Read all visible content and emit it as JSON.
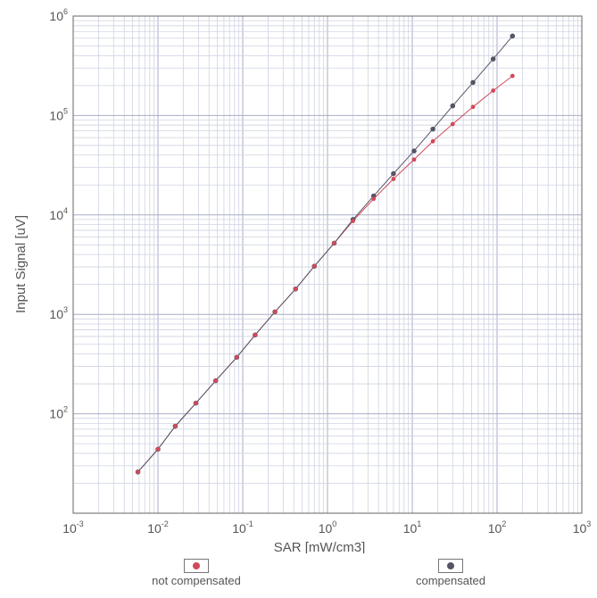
{
  "chart_data": {
    "type": "scatter",
    "title": "",
    "xlabel": "SAR [mW/cm3]",
    "ylabel": "Input Signal [uV]",
    "x_scale": "log",
    "y_scale": "log",
    "xlim": [
      0.001,
      1000
    ],
    "ylim": [
      10,
      1000000
    ],
    "x_ticks": [
      {
        "base": "10",
        "exp": "-3"
      },
      {
        "base": "10",
        "exp": "-2"
      },
      {
        "base": "10",
        "exp": "-1"
      },
      {
        "base": "10",
        "exp": "0"
      },
      {
        "base": "10",
        "exp": "1"
      },
      {
        "base": "10",
        "exp": "2"
      },
      {
        "base": "10",
        "exp": "3"
      }
    ],
    "y_ticks": [
      {
        "base": "10",
        "exp": "2"
      },
      {
        "base": "10",
        "exp": "3"
      },
      {
        "base": "10",
        "exp": "4"
      },
      {
        "base": "10",
        "exp": "5"
      },
      {
        "base": "10",
        "exp": "6"
      }
    ],
    "grid": true,
    "legend_position": "bottom",
    "series": [
      {
        "name": "not compensated",
        "color": "#d14a5a",
        "x": [
          0.0058,
          0.01,
          0.016,
          0.028,
          0.048,
          0.085,
          0.14,
          0.24,
          0.42,
          0.7,
          1.2,
          2.0,
          3.5,
          6.0,
          10.5,
          17.5,
          30,
          52,
          90,
          152
        ],
        "y": [
          26,
          44,
          75,
          128,
          215,
          370,
          620,
          1060,
          1800,
          3050,
          5200,
          8700,
          14500,
          23000,
          36000,
          55000,
          82000,
          122000,
          178000,
          250000
        ]
      },
      {
        "name": "compensated",
        "color": "#555566",
        "x": [
          0.0058,
          0.01,
          0.016,
          0.028,
          0.048,
          0.085,
          0.14,
          0.24,
          0.42,
          0.7,
          1.2,
          2.0,
          3.5,
          6.0,
          10.5,
          17.5,
          30,
          52,
          90,
          152
        ],
        "y": [
          26,
          44,
          75,
          128,
          215,
          370,
          620,
          1060,
          1800,
          3050,
          5200,
          9000,
          15500,
          26000,
          44000,
          73000,
          125000,
          215000,
          370000,
          630000
        ]
      }
    ]
  }
}
